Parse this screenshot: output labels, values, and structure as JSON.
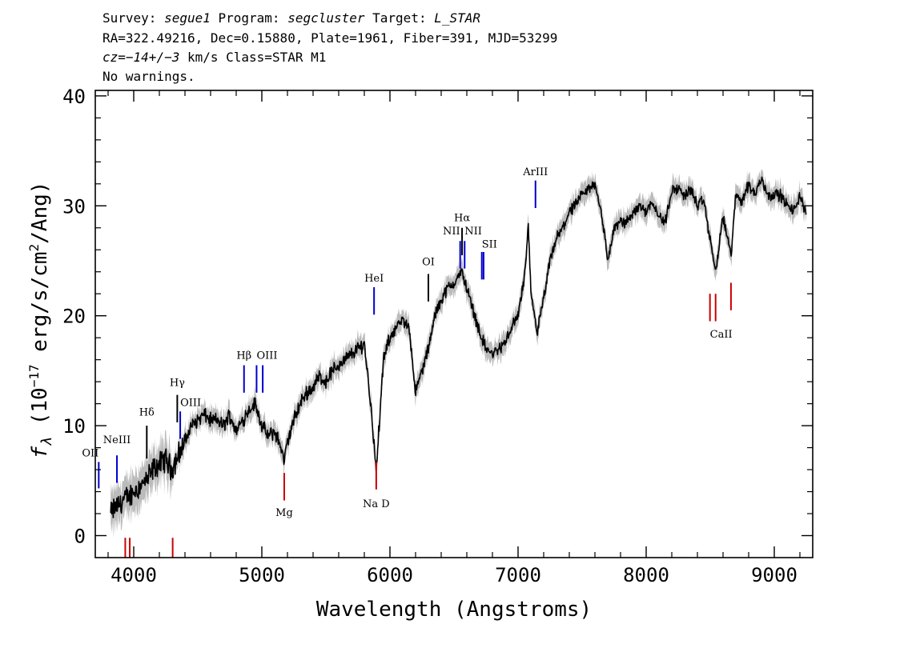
{
  "header": {
    "line1": [
      {
        "t": "Survey: "
      },
      {
        "t": "segue1",
        "i": true
      },
      {
        "t": " Program: "
      },
      {
        "t": "segcluster",
        "i": true
      },
      {
        "t": " Target: "
      },
      {
        "t": "L_STAR",
        "i": true
      }
    ],
    "line2": [
      {
        "t": "RA=322.49216, Dec=0.15880, Plate=1961, Fiber=391, MJD=53299"
      }
    ],
    "line3": [
      {
        "t": "cz",
        "i": true
      },
      {
        "t": "="
      },
      {
        "t": "−14+/−3",
        "i": true
      },
      {
        "t": " km/s Class=STAR M1"
      }
    ],
    "line4": [
      {
        "t": "No warnings."
      }
    ]
  },
  "chart_data": {
    "type": "line",
    "title": "",
    "xlabel": "Wavelength (Angstroms)",
    "ylabel": "f_λ (10^-17 erg/s/cm^2/Ang)",
    "xlim": [
      3700,
      9300
    ],
    "ylim": [
      -2,
      40.5
    ],
    "xticks": [
      4000,
      5000,
      6000,
      7000,
      8000,
      9000
    ],
    "yticks": [
      0,
      10,
      20,
      30,
      40
    ],
    "grid": false,
    "series": [
      {
        "style": "spectrum",
        "color": "#000000",
        "error_band_color": "#bbbbbb",
        "x": [
          3820,
          3850,
          3900,
          3950,
          4000,
          4050,
          4100,
          4150,
          4200,
          4250,
          4300,
          4350,
          4400,
          4450,
          4500,
          4550,
          4600,
          4650,
          4700,
          4750,
          4800,
          4850,
          4900,
          4950,
          5000,
          5050,
          5100,
          5150,
          5175,
          5200,
          5250,
          5300,
          5350,
          5400,
          5450,
          5500,
          5550,
          5600,
          5650,
          5700,
          5750,
          5800,
          5850,
          5880,
          5893,
          5910,
          5950,
          6000,
          6050,
          6100,
          6150,
          6200,
          6250,
          6300,
          6350,
          6400,
          6450,
          6500,
          6563,
          6600,
          6650,
          6700,
          6750,
          6800,
          6850,
          6900,
          6950,
          7000,
          7050,
          7080,
          7100,
          7150,
          7200,
          7250,
          7300,
          7350,
          7400,
          7450,
          7500,
          7550,
          7600,
          7650,
          7700,
          7750,
          7800,
          7850,
          7900,
          7950,
          8000,
          8050,
          8100,
          8150,
          8200,
          8250,
          8300,
          8350,
          8400,
          8450,
          8498,
          8542,
          8600,
          8662,
          8700,
          8750,
          8800,
          8850,
          8900,
          8950,
          9000,
          9050,
          9100,
          9150,
          9200,
          9250
        ],
        "y": [
          2.0,
          2.5,
          3.0,
          3.5,
          4.0,
          4.5,
          5.0,
          6.0,
          6.5,
          7.0,
          6.0,
          7.5,
          8.5,
          10.0,
          10.5,
          11.0,
          10.5,
          10.5,
          10.0,
          11.0,
          9.5,
          10.5,
          11.5,
          12.0,
          10.0,
          9.0,
          9.5,
          8.0,
          6.8,
          8.5,
          10.5,
          12.0,
          13.0,
          13.5,
          14.5,
          14.0,
          15.0,
          15.5,
          16.0,
          16.5,
          17.0,
          17.5,
          12.0,
          8.0,
          5.5,
          9.0,
          16.0,
          18.0,
          19.0,
          19.5,
          19.0,
          13.0,
          15.0,
          17.0,
          20.0,
          21.5,
          22.5,
          23.0,
          24.0,
          22.5,
          20.5,
          18.5,
          17.0,
          16.5,
          17.0,
          17.5,
          19.0,
          20.0,
          23.5,
          28.0,
          22.0,
          18.5,
          21.5,
          25.0,
          27.0,
          28.0,
          29.5,
          30.0,
          31.0,
          31.5,
          32.0,
          29.5,
          25.0,
          28.0,
          28.5,
          28.5,
          29.5,
          30.0,
          29.5,
          30.5,
          29.0,
          28.5,
          31.5,
          31.5,
          31.0,
          31.5,
          30.0,
          30.5,
          27.0,
          24.0,
          29.0,
          25.5,
          31.0,
          30.5,
          32.0,
          31.0,
          32.5,
          31.0,
          31.0,
          31.0,
          30.0,
          29.5,
          31.0,
          29.0
        ]
      }
    ],
    "emission_lines": [
      {
        "label": "OII",
        "wave": 3727,
        "color": "#0000cc",
        "label_y": 7.2,
        "line_top": 6.7,
        "line_bottom": 4.3,
        "anchor": "end"
      },
      {
        "label": "NeIII",
        "wave": 3869,
        "color": "#0000cc",
        "label_y": 8.4,
        "line_top": 7.3,
        "line_bottom": 4.8,
        "anchor": "middle"
      },
      {
        "label": "Hδ",
        "wave": 4102,
        "color": "#000000",
        "label_y": 10.9,
        "line_top": 10.0,
        "line_bottom": 7.0,
        "anchor": "middle"
      },
      {
        "label": "Hγ",
        "wave": 4340,
        "color": "#000000",
        "label_y": 13.6,
        "line_top": 12.8,
        "line_bottom": 10.3,
        "anchor": "middle"
      },
      {
        "label": "OIII",
        "wave": 4363,
        "color": "#0000cc",
        "label_y": 11.8,
        "line_top": 11.3,
        "line_bottom": 8.8,
        "anchor": "start"
      },
      {
        "label": "Hβ",
        "wave": 4861,
        "color": "#0000cc",
        "label_y": 16.1,
        "line_top": 15.5,
        "line_bottom": 13.0,
        "anchor": "middle"
      },
      {
        "label": "OIII",
        "wave": 4959,
        "color": "#0000cc",
        "label_y": 16.1,
        "line_top": 15.5,
        "line_bottom": 13.0,
        "anchor": "start"
      },
      {
        "label": "",
        "wave": 5007,
        "color": "#0000cc",
        "label_y": 0,
        "line_top": 15.5,
        "line_bottom": 13.0,
        "anchor": "middle"
      },
      {
        "label": "HeI",
        "wave": 5876,
        "color": "#0000cc",
        "label_y": 23.1,
        "line_top": 22.6,
        "line_bottom": 20.1,
        "anchor": "middle"
      },
      {
        "label": "OI",
        "wave": 6300,
        "color": "#000000",
        "label_y": 24.6,
        "line_top": 23.8,
        "line_bottom": 21.3,
        "anchor": "middle"
      },
      {
        "label": "NII",
        "wave": 6548,
        "color": "#0000cc",
        "label_y": 27.4,
        "line_top": 26.8,
        "line_bottom": 24.3,
        "anchor": "end"
      },
      {
        "label": "Hα",
        "wave": 6563,
        "color": "#000000",
        "label_y": 28.6,
        "line_top": 28.0,
        "line_bottom": 25.5,
        "anchor": "middle"
      },
      {
        "label": "",
        "wave": 6583,
        "color": "#0000cc",
        "label_y": 0,
        "line_top": 26.8,
        "line_bottom": 24.3,
        "anchor": "middle"
      },
      {
        "label": "NII",
        "wave": 6583,
        "color": "#0000cc",
        "label_y": 27.4,
        "line_top": 0,
        "line_bottom": 0,
        "anchor": "start"
      },
      {
        "label": "SII",
        "wave": 6717,
        "color": "#0000cc",
        "label_y": 26.2,
        "line_top": 25.8,
        "line_bottom": 23.3,
        "anchor": "start"
      },
      {
        "label": "",
        "wave": 6731,
        "color": "#0000cc",
        "label_y": 0,
        "line_top": 25.8,
        "line_bottom": 23.3,
        "anchor": "middle"
      },
      {
        "label": "ArIII",
        "wave": 7136,
        "color": "#0000cc",
        "label_y": 32.8,
        "line_top": 32.3,
        "line_bottom": 29.8,
        "anchor": "middle"
      }
    ],
    "absorption_lines": [
      {
        "label": "",
        "wave": 3934,
        "color": "#cc0000",
        "line_top": -0.2,
        "line_bottom": -2.6,
        "label_y": 0,
        "anchor": "middle"
      },
      {
        "label": "",
        "wave": 3969,
        "color": "#cc0000",
        "line_top": -0.2,
        "line_bottom": -2.6,
        "label_y": 0,
        "anchor": "middle"
      },
      {
        "label": "",
        "wave": 4304,
        "color": "#cc0000",
        "line_top": -0.2,
        "line_bottom": -2.6,
        "label_y": 0,
        "anchor": "middle"
      },
      {
        "label": "Mg",
        "wave": 5175,
        "color": "#cc0000",
        "line_top": 5.7,
        "line_bottom": 3.2,
        "label_y": 1.8,
        "anchor": "middle"
      },
      {
        "label": "Na D",
        "wave": 5893,
        "color": "#cc0000",
        "line_top": 6.7,
        "line_bottom": 4.2,
        "label_y": 2.6,
        "anchor": "middle"
      },
      {
        "label": "CaII",
        "wave": 8498,
        "color": "#cc0000",
        "line_top": 22.0,
        "line_bottom": 19.5,
        "label_y": 18.0,
        "anchor": "start"
      },
      {
        "label": "",
        "wave": 8542,
        "color": "#cc0000",
        "line_top": 22.0,
        "line_bottom": 19.5,
        "label_y": 0,
        "anchor": "middle"
      },
      {
        "label": "",
        "wave": 8662,
        "color": "#cc0000",
        "line_top": 23.0,
        "line_bottom": 20.5,
        "label_y": 0,
        "anchor": "middle"
      }
    ]
  }
}
